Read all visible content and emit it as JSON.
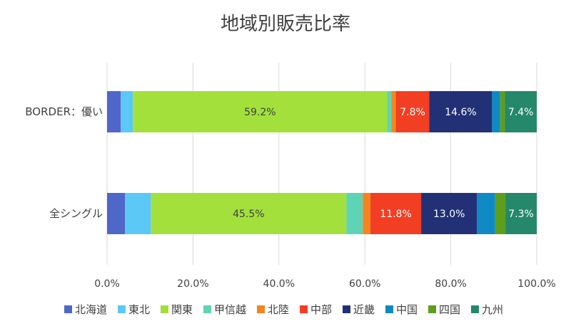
{
  "chart_data": {
    "type": "bar",
    "orientation": "horizontal",
    "stacked": "percent",
    "title": "地域別販売比率",
    "categories": [
      "BORDER：優い",
      "全シングル"
    ],
    "series": [
      {
        "name": "北海道",
        "color": "#4f67c8",
        "values": [
          3.2,
          4.2
        ]
      },
      {
        "name": "東北",
        "color": "#5bc8f5",
        "values": [
          2.8,
          6.0
        ]
      },
      {
        "name": "関東",
        "color": "#a3e03c",
        "values": [
          59.2,
          45.5
        ]
      },
      {
        "name": "甲信越",
        "color": "#5fd3b5",
        "values": [
          1.0,
          3.8
        ]
      },
      {
        "name": "北陸",
        "color": "#f5841f",
        "values": [
          1.0,
          1.8
        ]
      },
      {
        "name": "中部",
        "color": "#f23e23",
        "values": [
          7.8,
          11.8
        ]
      },
      {
        "name": "近畿",
        "color": "#223176",
        "values": [
          14.6,
          13.0
        ]
      },
      {
        "name": "中国",
        "color": "#0f8ac4",
        "values": [
          1.9,
          4.2
        ]
      },
      {
        "name": "四国",
        "color": "#5e9e1c",
        "values": [
          1.1,
          2.4
        ]
      },
      {
        "name": "九州",
        "color": "#25886a",
        "values": [
          7.4,
          7.3
        ]
      }
    ],
    "data_labels": [
      {
        "category": 0,
        "series": 2,
        "text": "59.2%"
      },
      {
        "category": 0,
        "series": 5,
        "text": "7.8%"
      },
      {
        "category": 0,
        "series": 6,
        "text": "14.6%"
      },
      {
        "category": 0,
        "series": 9,
        "text": "7.4%"
      },
      {
        "category": 1,
        "series": 2,
        "text": "45.5%"
      },
      {
        "category": 1,
        "series": 5,
        "text": "11.8%"
      },
      {
        "category": 1,
        "series": 6,
        "text": "13.0%"
      },
      {
        "category": 1,
        "series": 9,
        "text": "7.3%"
      }
    ],
    "x_ticks": [
      "0.0%",
      "20.0%",
      "40.0%",
      "60.0%",
      "80.0%",
      "100.0%"
    ],
    "xlim": [
      0,
      100
    ],
    "grid": "vertical",
    "legend_position": "bottom"
  }
}
